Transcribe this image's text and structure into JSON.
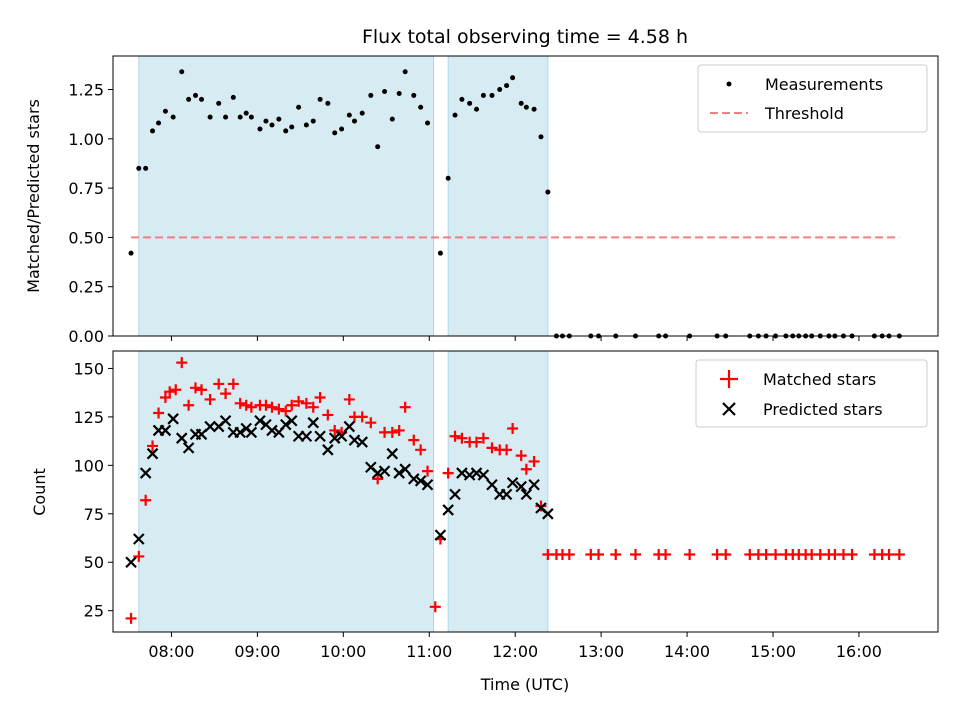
{
  "title": "Flux total observing time = 4.58 h",
  "chart_data": [
    {
      "type": "scatter",
      "panel": "top",
      "ylabel": "Matched/Predicted stars",
      "xlabel": "",
      "xlim": [
        7.32,
        16.92
      ],
      "ylim": [
        0,
        1.42
      ],
      "yticks": [
        0.0,
        0.25,
        0.5,
        0.75,
        1.0,
        1.25
      ],
      "ytick_labels": [
        "0.00",
        "0.25",
        "0.50",
        "0.75",
        "1.00",
        "1.25"
      ],
      "threshold": 0.5,
      "threshold_x": [
        7.53,
        16.47
      ],
      "shaded_intervals": [
        [
          7.62,
          11.05
        ],
        [
          11.22,
          12.38
        ]
      ],
      "legend_location": "upper right",
      "series": [
        {
          "name": "Measurements",
          "color": "#000000",
          "marker": "dot",
          "x": [
            7.53,
            7.62,
            7.7,
            7.78,
            7.85,
            7.93,
            8.02,
            8.12,
            8.2,
            8.28,
            8.35,
            8.45,
            8.55,
            8.63,
            8.72,
            8.8,
            8.87,
            8.93,
            9.03,
            9.1,
            9.17,
            9.25,
            9.33,
            9.4,
            9.48,
            9.57,
            9.65,
            9.73,
            9.82,
            9.9,
            9.98,
            10.07,
            10.13,
            10.22,
            10.32,
            10.4,
            10.48,
            10.57,
            10.65,
            10.72,
            10.82,
            10.9,
            10.98,
            11.13,
            11.22,
            11.3,
            11.38,
            11.47,
            11.55,
            11.63,
            11.73,
            11.82,
            11.9,
            11.97,
            12.07,
            12.13,
            12.22,
            12.3,
            12.38,
            12.48,
            12.55,
            12.63,
            12.88,
            12.97,
            13.17,
            13.4,
            13.67,
            13.75,
            14.03,
            14.35,
            14.45,
            14.73,
            14.83,
            14.92,
            15.03,
            15.15,
            15.23,
            15.3,
            15.38,
            15.45,
            15.55,
            15.65,
            15.72,
            15.82,
            15.92,
            16.18,
            16.27,
            16.35,
            16.47
          ],
          "y": [
            0.42,
            0.85,
            0.85,
            1.04,
            1.08,
            1.14,
            1.11,
            1.34,
            1.2,
            1.22,
            1.2,
            1.11,
            1.18,
            1.11,
            1.21,
            1.11,
            1.13,
            1.11,
            1.05,
            1.09,
            1.07,
            1.1,
            1.04,
            1.06,
            1.16,
            1.07,
            1.09,
            1.2,
            1.18,
            1.03,
            1.05,
            1.12,
            1.09,
            1.13,
            1.22,
            0.96,
            1.24,
            1.1,
            1.23,
            1.34,
            1.22,
            1.16,
            1.08,
            0.42,
            0.8,
            1.12,
            1.2,
            1.18,
            1.15,
            1.22,
            1.22,
            1.25,
            1.27,
            1.31,
            1.18,
            1.16,
            1.15,
            1.01,
            0.73,
            0,
            0,
            0,
            0,
            0,
            0,
            0,
            0,
            0,
            0,
            0,
            0,
            0,
            0,
            0,
            0,
            0,
            0,
            0,
            0,
            0,
            0,
            0,
            0,
            0,
            0,
            0,
            0,
            0,
            0
          ]
        },
        {
          "name": "Threshold",
          "color": "#f08080",
          "marker": "dashed-line"
        }
      ]
    },
    {
      "type": "scatter",
      "panel": "bottom",
      "ylabel": "Count",
      "xlabel": "Time (UTC)",
      "xlim": [
        7.32,
        16.92
      ],
      "ylim": [
        14,
        159
      ],
      "yticks": [
        25,
        50,
        75,
        100,
        125,
        150
      ],
      "ytick_labels": [
        "25",
        "50",
        "75",
        "100",
        "125",
        "150"
      ],
      "xticks": [
        8,
        9,
        10,
        11,
        12,
        13,
        14,
        15,
        16
      ],
      "xtick_labels": [
        "08:00",
        "09:00",
        "10:00",
        "11:00",
        "12:00",
        "13:00",
        "14:00",
        "15:00",
        "16:00"
      ],
      "shaded_intervals": [
        [
          7.62,
          11.05
        ],
        [
          11.22,
          12.38
        ]
      ],
      "legend_location": "upper right",
      "series": [
        {
          "name": "Matched stars",
          "color": "#ff0000",
          "marker": "plus",
          "x": [
            7.53,
            7.62,
            7.7,
            7.78,
            7.85,
            7.93,
            7.98,
            8.05,
            8.12,
            8.2,
            8.28,
            8.35,
            8.45,
            8.55,
            8.63,
            8.72,
            8.8,
            8.87,
            8.93,
            9.03,
            9.1,
            9.17,
            9.25,
            9.33,
            9.4,
            9.48,
            9.57,
            9.65,
            9.73,
            9.82,
            9.9,
            9.98,
            10.07,
            10.13,
            10.22,
            10.32,
            10.4,
            10.48,
            10.57,
            10.65,
            10.72,
            10.82,
            10.9,
            10.98,
            11.07,
            11.13,
            11.22,
            11.3,
            11.38,
            11.47,
            11.55,
            11.63,
            11.73,
            11.82,
            11.9,
            11.97,
            12.07,
            12.13,
            12.22,
            12.3,
            12.38,
            12.48,
            12.55,
            12.63,
            12.88,
            12.97,
            13.17,
            13.4,
            13.67,
            13.75,
            14.03,
            14.35,
            14.45,
            14.73,
            14.83,
            14.92,
            15.03,
            15.15,
            15.23,
            15.3,
            15.38,
            15.45,
            15.55,
            15.65,
            15.72,
            15.82,
            15.92,
            16.18,
            16.27,
            16.35,
            16.47
          ],
          "y": [
            21,
            53,
            82,
            110,
            127,
            135,
            138,
            139,
            153,
            131,
            140,
            139,
            134,
            142,
            137,
            142,
            132,
            131,
            130,
            131,
            131,
            130,
            129,
            128,
            131,
            133,
            132,
            130,
            135,
            126,
            118,
            117,
            134,
            125,
            125,
            122,
            93,
            117,
            117,
            118,
            130,
            113,
            108,
            97,
            27,
            62,
            96,
            115,
            114,
            112,
            112,
            114,
            109,
            108,
            108,
            119,
            105,
            98,
            102,
            79,
            54,
            54,
            54,
            54,
            54,
            54,
            54,
            54,
            54,
            54,
            54,
            54,
            54,
            54,
            54,
            54,
            54,
            54,
            54,
            54,
            54,
            54,
            54,
            54,
            54,
            54,
            54,
            54,
            54,
            54,
            54
          ]
        },
        {
          "name": "Predicted stars",
          "color": "#000000",
          "marker": "x",
          "x": [
            7.53,
            7.62,
            7.7,
            7.78,
            7.85,
            7.93,
            8.02,
            8.12,
            8.2,
            8.28,
            8.35,
            8.45,
            8.55,
            8.63,
            8.72,
            8.8,
            8.87,
            8.93,
            9.03,
            9.1,
            9.17,
            9.25,
            9.33,
            9.4,
            9.48,
            9.57,
            9.65,
            9.73,
            9.82,
            9.9,
            9.98,
            10.07,
            10.13,
            10.22,
            10.32,
            10.4,
            10.48,
            10.57,
            10.65,
            10.72,
            10.82,
            10.9,
            10.98,
            11.13,
            11.22,
            11.3,
            11.38,
            11.47,
            11.55,
            11.63,
            11.73,
            11.82,
            11.9,
            11.97,
            12.07,
            12.13,
            12.22,
            12.3,
            12.38
          ],
          "y": [
            50,
            62,
            96,
            106,
            118,
            118,
            124,
            114,
            109,
            116,
            116,
            120,
            120,
            123,
            117,
            117,
            119,
            117,
            123,
            121,
            118,
            117,
            121,
            123,
            115,
            115,
            122,
            115,
            108,
            114,
            115,
            120,
            113,
            112,
            99,
            96,
            97,
            106,
            96,
            98,
            93,
            92,
            90,
            64,
            77,
            85,
            96,
            95,
            96,
            95,
            90,
            85,
            85,
            91,
            89,
            85,
            90,
            78,
            75
          ]
        }
      ]
    }
  ]
}
